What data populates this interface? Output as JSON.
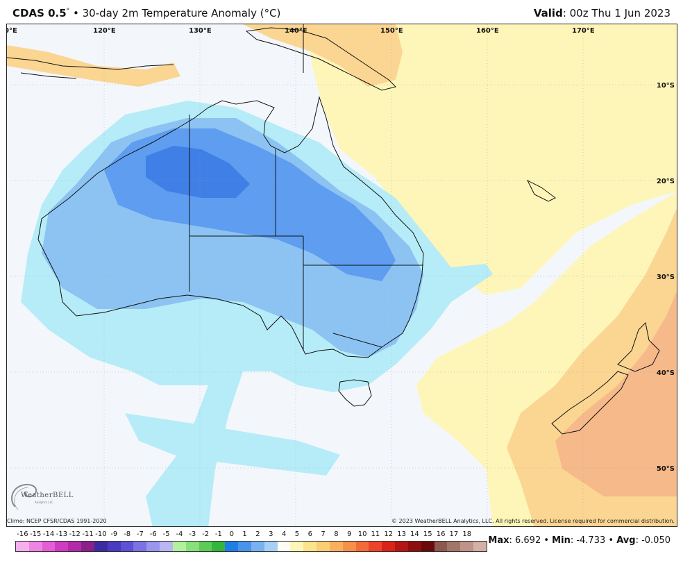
{
  "header": {
    "model": "CDAS 0.5",
    "deg_symbol": "°",
    "bullet": "•",
    "title": "30-day 2m Temperature Anomaly (°C)",
    "valid_label": "Valid",
    "valid_value": ": 00z Thu 1 Jun 2023"
  },
  "map": {
    "lon_labels": [
      "0°E",
      "120°E",
      "130°E",
      "140°E",
      "150°E",
      "160°E",
      "170°E"
    ],
    "lat_labels": [
      "10°S",
      "20°S",
      "30°S",
      "40°S",
      "50°S"
    ],
    "colors": {
      "background": "#f3f7fc",
      "warm_light": "#fdf6b8",
      "warm_mid": "#fbd592",
      "warm_strong": "#f6b98a",
      "cool_light": "#b6ecf7",
      "cool_mid": "#8cc3f2",
      "cool_strong": "#5e9def",
      "cool_deep": "#3f7fe6",
      "coastline": "#111111"
    }
  },
  "credits": {
    "climo": "Climo: NCEP CFSR/CDAS 1991-2020",
    "copyright": "© 2023 WeatherBELL Analytics, LLC. All rights reserved. License required for commercial distribution."
  },
  "logo": {
    "name": "WeatherBELL",
    "sub": "Analytics LLC"
  },
  "legend": {
    "labels": [
      "-16",
      "-15",
      "-14",
      "-13",
      "-12",
      "-11",
      "-10",
      "-9",
      "-8",
      "-7",
      "-6",
      "-5",
      "-4",
      "-3",
      "-2",
      "-1",
      "0",
      "1",
      "2",
      "3",
      "4",
      "5",
      "6",
      "7",
      "8",
      "9",
      "10",
      "11",
      "12",
      "13",
      "14",
      "15",
      "16",
      "17",
      "18"
    ],
    "colors": [
      "#f7b0ee",
      "#ef84e3",
      "#e35fd6",
      "#cf3bc2",
      "#b32ba9",
      "#8c1f8a",
      "#3d2ba1",
      "#4a3cc1",
      "#6050d6",
      "#7b72e4",
      "#9a95ee",
      "#b9b6f3",
      "#b3f0a0",
      "#88e07a",
      "#5ccb58",
      "#35b53a",
      "#1f7ee6",
      "#4a95ec",
      "#79b2f0",
      "#a8d0f4",
      "#fffdf4",
      "#fdf6b8",
      "#fbe48c",
      "#fbcd74",
      "#f9b05d",
      "#f6914a",
      "#f26c39",
      "#ec4428",
      "#d9241a",
      "#b61515",
      "#8d0f10",
      "#6b0a0a",
      "#8a5a50",
      "#a47668",
      "#be9488",
      "#d4b0a6"
    ],
    "colors_note": ""
  },
  "stats": {
    "max_label": "Max",
    "max_value": ": 6.692",
    "min_label": "Min",
    "min_value": ": -4.733",
    "avg_label": "Avg",
    "avg_value": ": -0.050",
    "sep": " • "
  }
}
